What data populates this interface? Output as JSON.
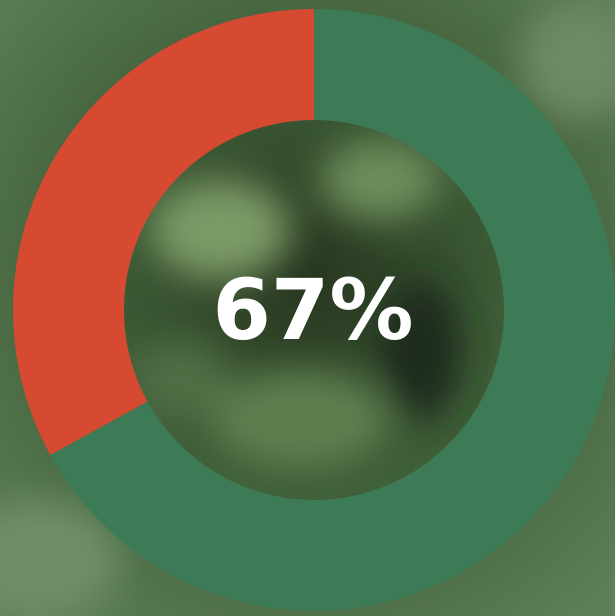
{
  "chart_data": {
    "type": "donut",
    "center_label": "67%",
    "values": [
      67,
      33
    ],
    "colors": [
      "#3d7b56",
      "#d54a31"
    ]
  }
}
